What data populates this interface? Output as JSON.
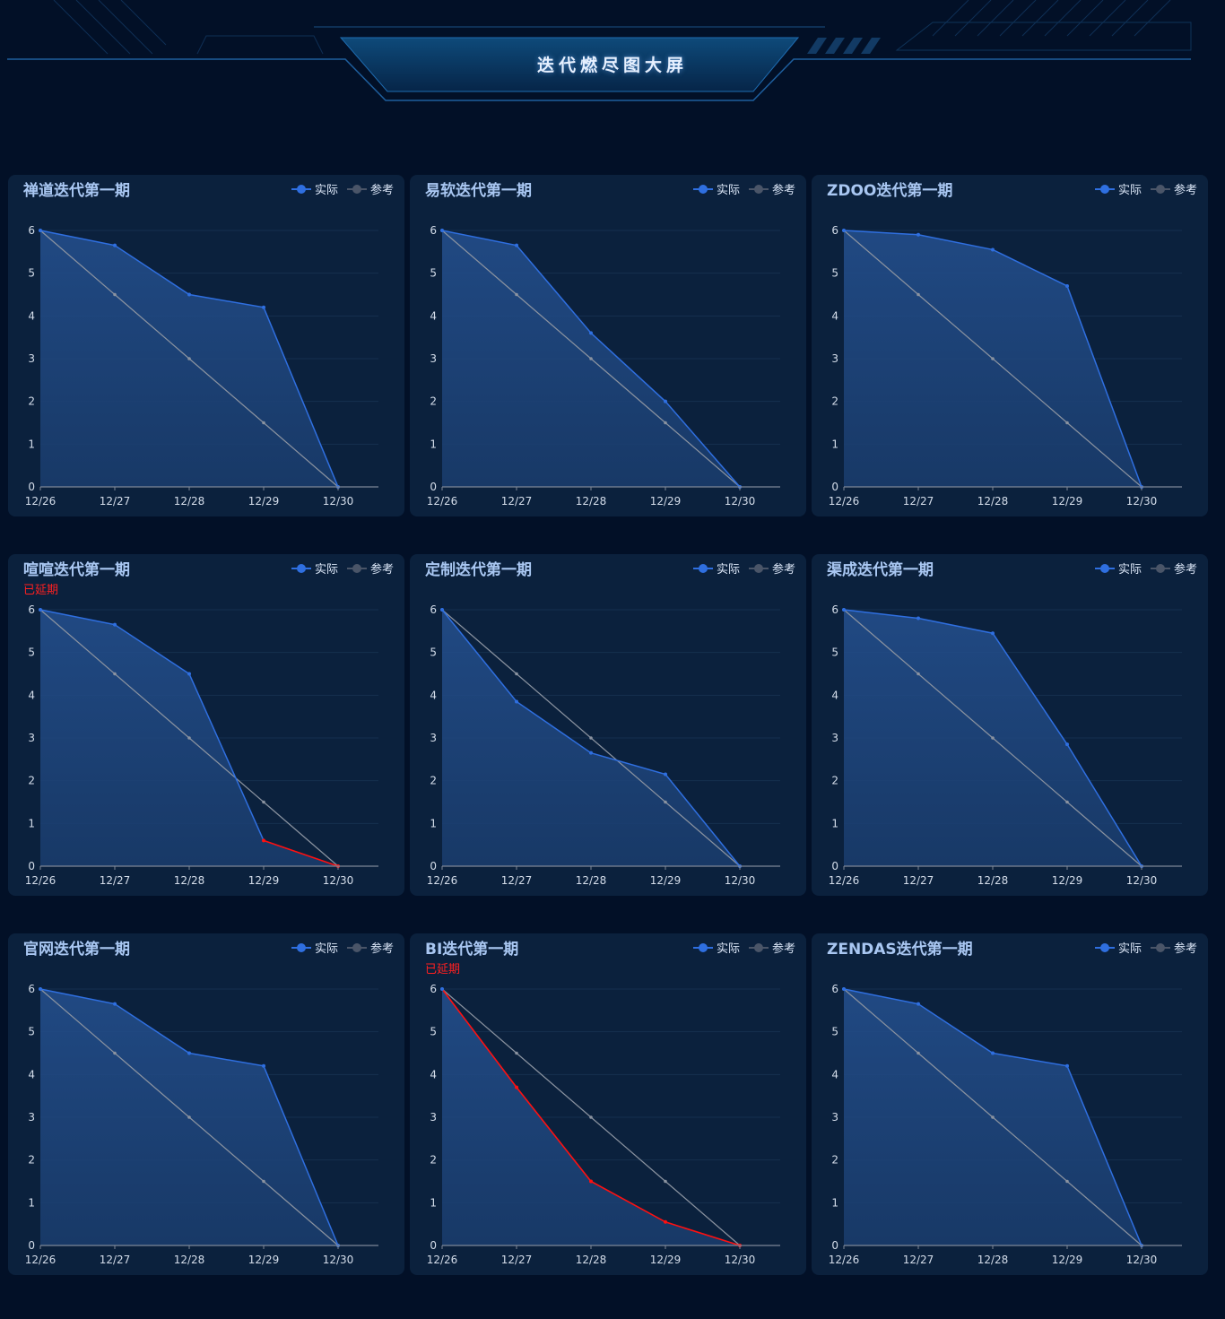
{
  "header": {
    "title": "迭代燃尽图大屏"
  },
  "legend": {
    "actual": "实际",
    "reference": "参考"
  },
  "colors": {
    "actual": "#2f6fe0",
    "reference": "#8b93a0",
    "delayed": "#ff1010",
    "background": "#021027",
    "panel": "#0b213d"
  },
  "chart_data": [
    {
      "type": "line",
      "title": "禅道迭代第一期",
      "flag": "",
      "categories": [
        "12/26",
        "12/27",
        "12/28",
        "12/29",
        "12/30"
      ],
      "series": [
        {
          "name": "实际",
          "values": [
            6,
            5.65,
            4.5,
            4.2,
            0
          ]
        },
        {
          "name": "参考",
          "values": [
            6,
            4.5,
            3,
            1.5,
            0
          ]
        }
      ],
      "ylim": [
        0,
        6
      ],
      "yticks": [
        0,
        1,
        2,
        3,
        4,
        5,
        6
      ]
    },
    {
      "type": "line",
      "title": "易软迭代第一期",
      "flag": "",
      "categories": [
        "12/26",
        "12/27",
        "12/28",
        "12/29",
        "12/30"
      ],
      "series": [
        {
          "name": "实际",
          "values": [
            6,
            5.65,
            3.6,
            2,
            0
          ]
        },
        {
          "name": "参考",
          "values": [
            6,
            4.5,
            3,
            1.5,
            0
          ]
        }
      ],
      "ylim": [
        0,
        6
      ],
      "yticks": [
        0,
        1,
        2,
        3,
        4,
        5,
        6
      ]
    },
    {
      "type": "line",
      "title": "ZDOO迭代第一期",
      "flag": "",
      "categories": [
        "12/26",
        "12/27",
        "12/28",
        "12/29",
        "12/30"
      ],
      "series": [
        {
          "name": "实际",
          "values": [
            6,
            5.9,
            5.55,
            4.7,
            0
          ]
        },
        {
          "name": "参考",
          "values": [
            6,
            4.5,
            3,
            1.5,
            0
          ]
        }
      ],
      "ylim": [
        0,
        6
      ],
      "yticks": [
        0,
        1,
        2,
        3,
        4,
        5,
        6
      ]
    },
    {
      "type": "line",
      "title": "喧喧迭代第一期",
      "flag": "已延期",
      "categories": [
        "12/26",
        "12/27",
        "12/28",
        "12/29",
        "12/30"
      ],
      "series": [
        {
          "name": "实际",
          "values": [
            6,
            5.65,
            4.5,
            0.6,
            0
          ]
        },
        {
          "name": "参考",
          "values": [
            6,
            4.5,
            3,
            1.5,
            0
          ]
        }
      ],
      "delayed_from": 3,
      "ylim": [
        0,
        6
      ],
      "yticks": [
        0,
        1,
        2,
        3,
        4,
        5,
        6
      ]
    },
    {
      "type": "line",
      "title": "定制迭代第一期",
      "flag": "",
      "categories": [
        "12/26",
        "12/27",
        "12/28",
        "12/29",
        "12/30"
      ],
      "series": [
        {
          "name": "实际",
          "values": [
            6,
            3.85,
            2.65,
            2.15,
            0
          ]
        },
        {
          "name": "参考",
          "values": [
            6,
            4.5,
            3,
            1.5,
            0
          ]
        }
      ],
      "ylim": [
        0,
        6
      ],
      "yticks": [
        0,
        1,
        2,
        3,
        4,
        5,
        6
      ]
    },
    {
      "type": "line",
      "title": "渠成迭代第一期",
      "flag": "",
      "categories": [
        "12/26",
        "12/27",
        "12/28",
        "12/29",
        "12/30"
      ],
      "series": [
        {
          "name": "实际",
          "values": [
            6,
            5.8,
            5.45,
            2.85,
            0
          ]
        },
        {
          "name": "参考",
          "values": [
            6,
            4.5,
            3,
            1.5,
            0
          ]
        }
      ],
      "ylim": [
        0,
        6
      ],
      "yticks": [
        0,
        1,
        2,
        3,
        4,
        5,
        6
      ]
    },
    {
      "type": "line",
      "title": "官网迭代第一期",
      "flag": "",
      "categories": [
        "12/26",
        "12/27",
        "12/28",
        "12/29",
        "12/30"
      ],
      "series": [
        {
          "name": "实际",
          "values": [
            6,
            5.65,
            4.5,
            4.2,
            0
          ]
        },
        {
          "name": "参考",
          "values": [
            6,
            4.5,
            3,
            1.5,
            0
          ]
        }
      ],
      "ylim": [
        0,
        6
      ],
      "yticks": [
        0,
        1,
        2,
        3,
        4,
        5,
        6
      ]
    },
    {
      "type": "line",
      "title": "BI迭代第一期",
      "flag": "已延期",
      "categories": [
        "12/26",
        "12/27",
        "12/28",
        "12/29",
        "12/30"
      ],
      "series": [
        {
          "name": "实际",
          "values": [
            6,
            3.7,
            1.5,
            0.55,
            0
          ]
        },
        {
          "name": "参考",
          "values": [
            6,
            4.5,
            3,
            1.5,
            0
          ]
        }
      ],
      "delayed_from": 0,
      "ylim": [
        0,
        6
      ],
      "yticks": [
        0,
        1,
        2,
        3,
        4,
        5,
        6
      ]
    },
    {
      "type": "line",
      "title": "ZENDAS迭代第一期",
      "flag": "",
      "categories": [
        "12/26",
        "12/27",
        "12/28",
        "12/29",
        "12/30"
      ],
      "series": [
        {
          "name": "实际",
          "values": [
            6,
            5.65,
            4.5,
            4.2,
            0
          ]
        },
        {
          "name": "参考",
          "values": [
            6,
            4.5,
            3,
            1.5,
            0
          ]
        }
      ],
      "ylim": [
        0,
        6
      ],
      "yticks": [
        0,
        1,
        2,
        3,
        4,
        5,
        6
      ]
    }
  ]
}
